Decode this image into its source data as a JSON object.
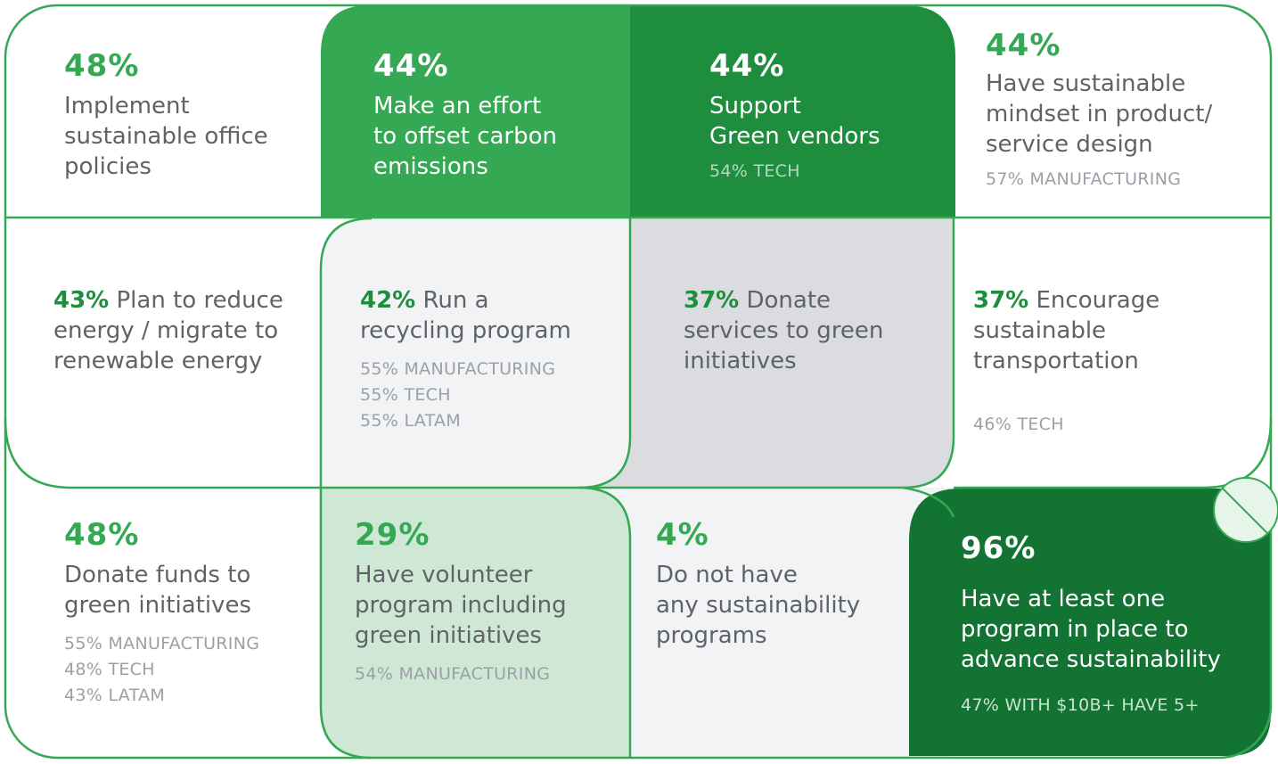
{
  "cells": {
    "office_policies": {
      "pct": "48%",
      "text": [
        "Implement",
        "sustainable office",
        "policies"
      ]
    },
    "offset_carbon": {
      "pct": "44%",
      "text": [
        "Make an effort",
        "to offset carbon",
        "emissions"
      ]
    },
    "green_vendors": {
      "pct": "44%",
      "text": [
        "Support",
        "Green vendors"
      ],
      "sub": [
        "54% TECH"
      ]
    },
    "product_design": {
      "pct": "44%",
      "text": [
        "Have sustainable",
        "mindset in product/",
        "service design"
      ],
      "sub": [
        "57% MANUFACTURING"
      ]
    },
    "reduce_energy": {
      "pct": "43%",
      "text": [
        "Plan to reduce",
        "energy / migrate to",
        "renewable energy"
      ]
    },
    "recycling": {
      "pct": "42%",
      "text": [
        "Run a",
        "recycling program"
      ],
      "sub": [
        "55% MANUFACTURING",
        "55% TECH",
        "55% LATAM"
      ]
    },
    "donate_services": {
      "pct": "37%",
      "text": [
        "Donate",
        "services to green",
        "initiatives"
      ]
    },
    "transportation": {
      "pct": "37%",
      "text": [
        "Encourage",
        "sustainable",
        "transportation"
      ],
      "sub": [
        "46% TECH"
      ]
    },
    "donate_funds": {
      "pct": "48%",
      "text": [
        "Donate funds to",
        "green initiatives"
      ],
      "sub": [
        "55% MANUFACTURING",
        "48% TECH",
        "43% LATAM"
      ]
    },
    "volunteer": {
      "pct": "29%",
      "text": [
        "Have volunteer",
        "program including",
        "green initiatives"
      ],
      "sub": [
        "54% MANUFACTURING"
      ]
    },
    "no_programs": {
      "pct": "4%",
      "text": [
        "Do not have",
        "any sustainability",
        "programs"
      ]
    },
    "at_least_one": {
      "pct": "96%",
      "text": [
        "Have at least one",
        "program in place to",
        "advance sustainability"
      ],
      "sub": [
        "47% WITH $10B+ HAVE 5+"
      ]
    }
  },
  "colors": {
    "outline": "#34a853",
    "green_mid": "#34a853",
    "green_dark": "#1e8e3e",
    "green_darkest": "#137333",
    "green_light": "#cfe8d6",
    "gray_light": "#f1f3f4",
    "gray_mid": "#dadce0"
  },
  "icons": {
    "leaf": "leaf-icon"
  }
}
